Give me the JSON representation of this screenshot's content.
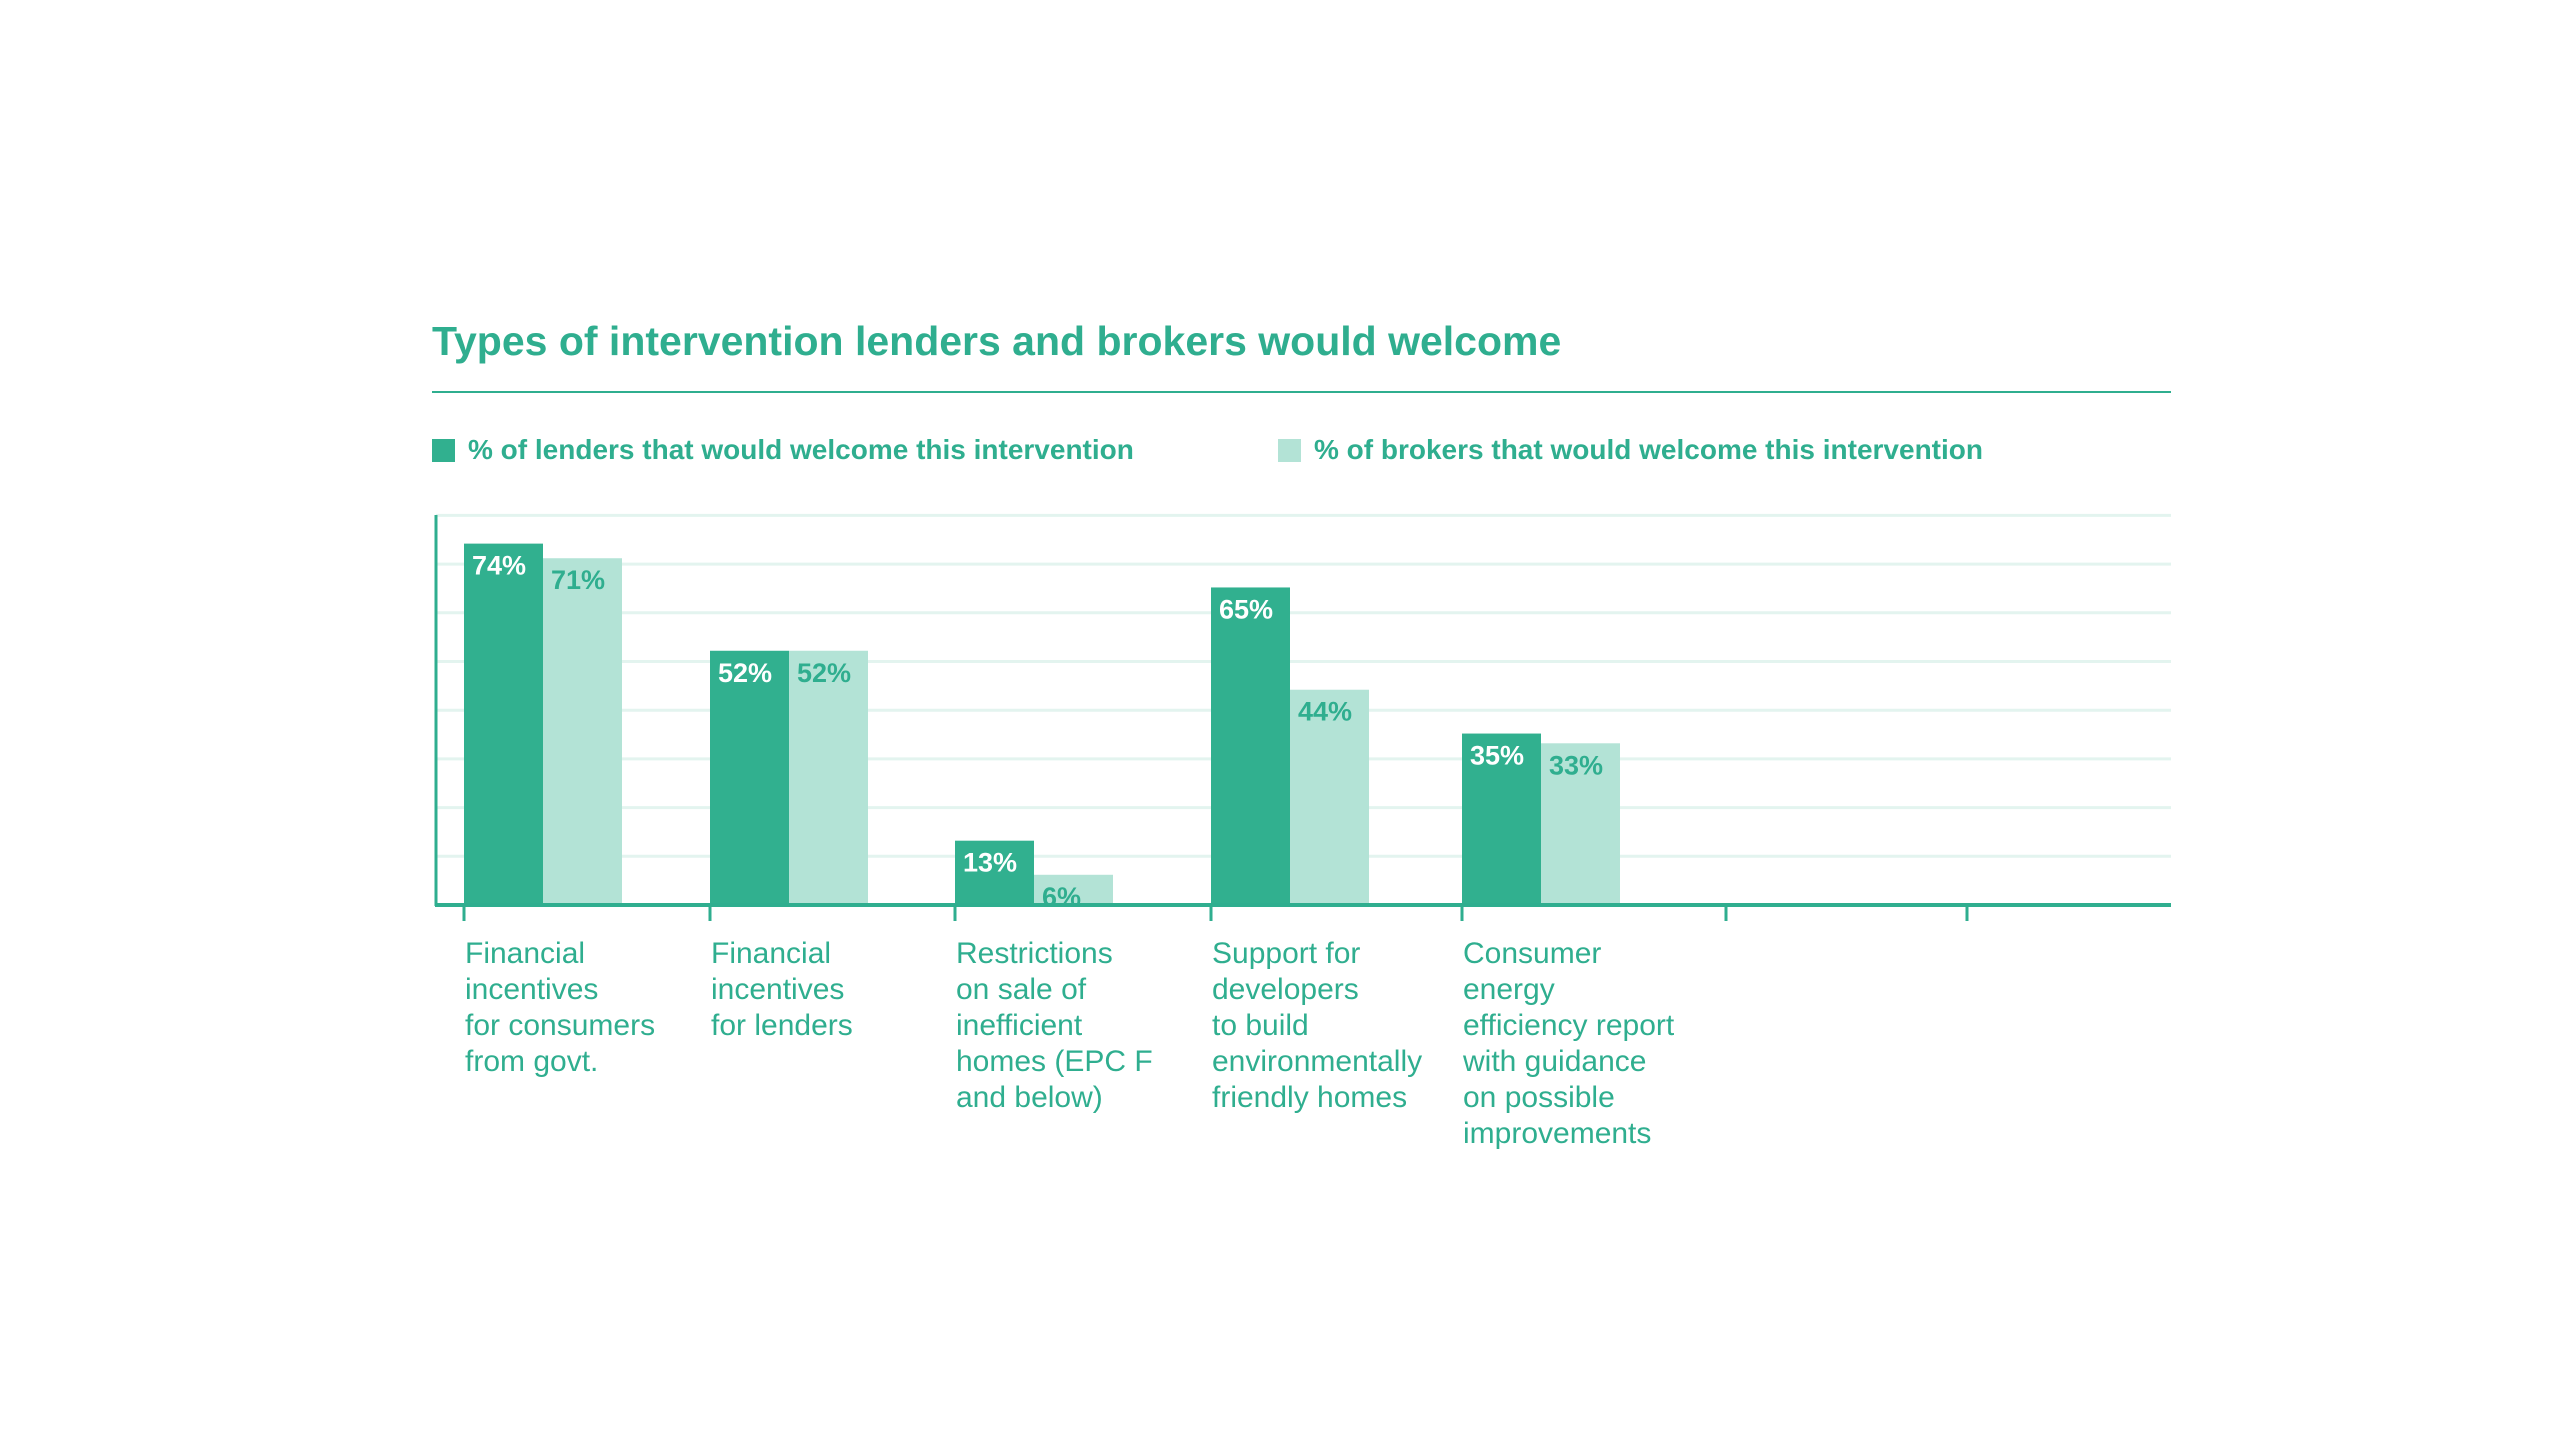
{
  "colors": {
    "lenders": "#31b08f",
    "brokers": "#b3e3d6",
    "accent": "#2fae8f",
    "gridline": "#e3f4ef",
    "label_on_dark": "#ffffff",
    "label_on_light": "#2fae8f"
  },
  "chart_data": {
    "type": "bar",
    "title": "Types of intervention lenders and brokers would welcome",
    "xlabel": "",
    "ylabel": "",
    "ylim": [
      0,
      80
    ],
    "grid": true,
    "legend_position": "top",
    "categories": [
      [
        "Financial",
        "incentives",
        "for consumers",
        "from govt."
      ],
      [
        "Financial",
        "incentives",
        "for lenders"
      ],
      [
        "Restrictions",
        "on sale of",
        "inefficient",
        "homes (EPC F",
        "and below)"
      ],
      [
        "Support for",
        "developers",
        "to build",
        "environmentally",
        "friendly homes"
      ],
      [
        "Consumer",
        "energy",
        "efficiency report",
        "with guidance",
        "on possible",
        "improvements"
      ]
    ],
    "series": [
      {
        "name": "% of lenders that would welcome this intervention",
        "values": [
          74,
          52,
          13,
          65,
          35
        ],
        "labels": [
          "74%",
          "52%",
          "13%",
          "65%",
          "35%"
        ]
      },
      {
        "name": "% of brokers that would welcome this intervention",
        "values": [
          71,
          52,
          6,
          44,
          33
        ],
        "labels": [
          "71%",
          "52%",
          "6%",
          "44%",
          "33%"
        ]
      }
    ]
  }
}
